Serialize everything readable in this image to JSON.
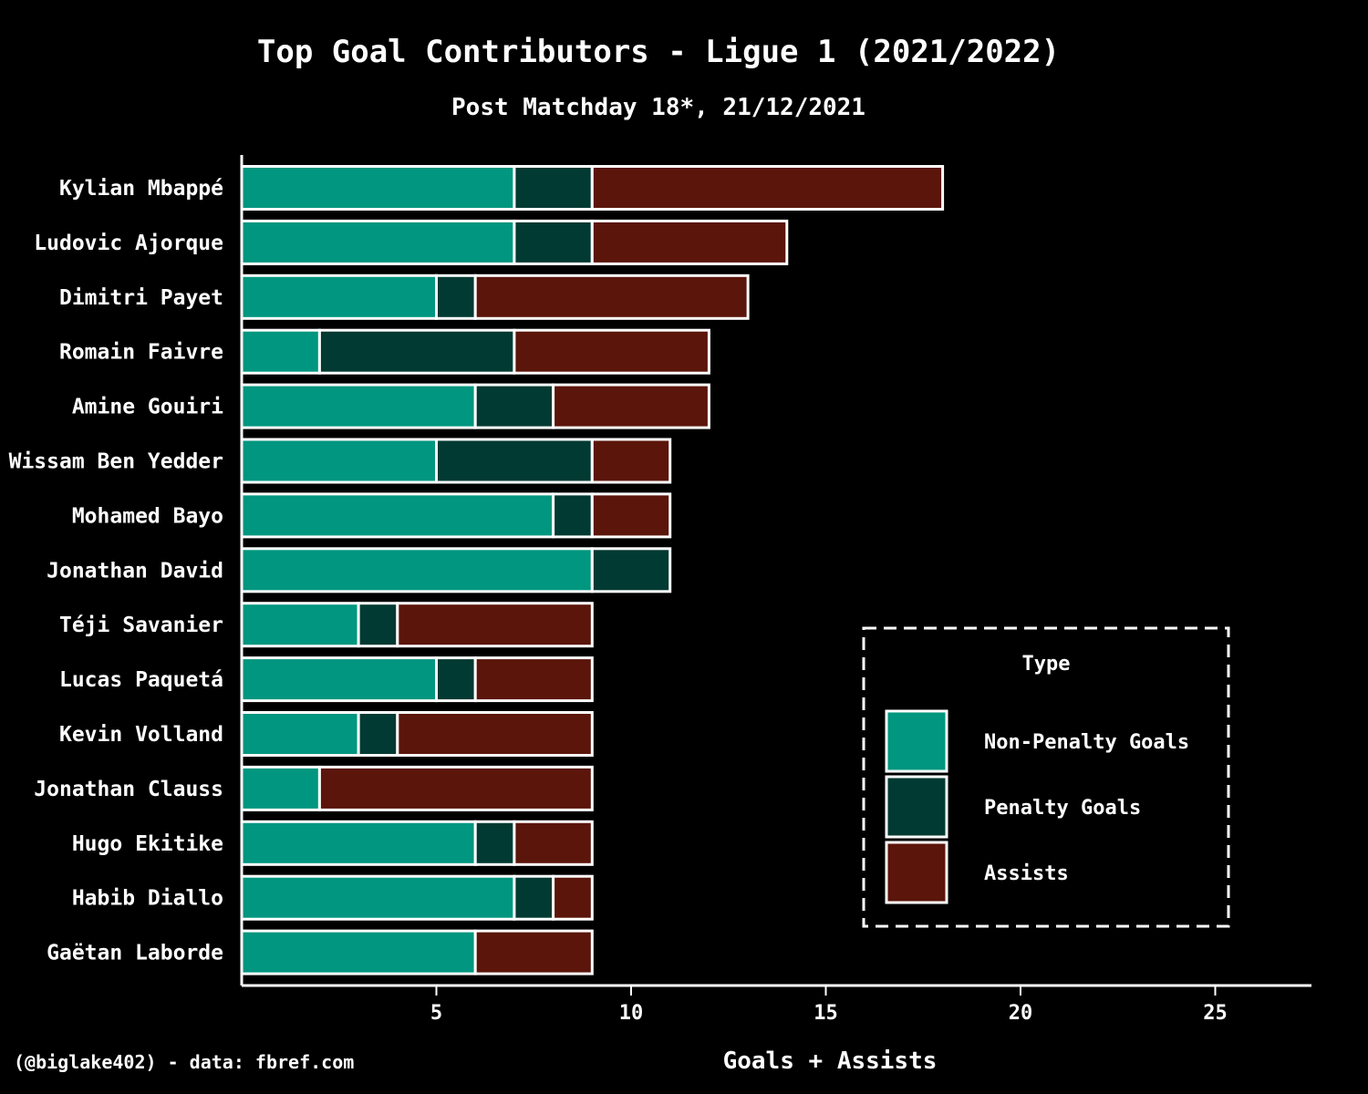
{
  "chart_data": {
    "type": "bar",
    "orientation": "horizontal",
    "stacked": true,
    "title": "Top Goal Contributors - Ligue 1 (2021/2022)",
    "subtitle": "Post Matchday 18*, 21/12/2021",
    "xlabel": "Goals + Assists",
    "ylabel": "",
    "xlim": [
      0,
      27.5
    ],
    "xticks": [
      5,
      10,
      15,
      20,
      25
    ],
    "grid": false,
    "categories": [
      "Kylian Mbappé",
      "Ludovic Ajorque",
      "Dimitri Payet",
      "Romain Faivre",
      "Amine Gouiri",
      "Wissam Ben Yedder",
      "Mohamed Bayo",
      "Jonathan David",
      "Téji Savanier",
      "Lucas Paquetá",
      "Kevin Volland",
      "Jonathan Clauss",
      "Hugo Ekitike",
      "Habib Diallo",
      "Gaëtan Laborde"
    ],
    "series": [
      {
        "name": "Non-Penalty Goals",
        "color": "#00967f",
        "values": [
          7,
          7,
          5,
          2,
          6,
          5,
          8,
          9,
          3,
          5,
          3,
          2,
          6,
          7,
          6
        ]
      },
      {
        "name": "Penalty Goals",
        "color": "#013a32",
        "values": [
          2,
          2,
          1,
          5,
          2,
          4,
          1,
          2,
          1,
          1,
          1,
          0,
          1,
          1,
          0
        ]
      },
      {
        "name": "Assists",
        "color": "#5b150b",
        "values": [
          9,
          5,
          7,
          5,
          4,
          2,
          2,
          0,
          5,
          3,
          5,
          7,
          2,
          1,
          3
        ]
      }
    ],
    "legend": {
      "title": "Type",
      "placement": "lower-right"
    }
  },
  "footer": {
    "credit": "(@biglake402) - data: fbref.com"
  }
}
